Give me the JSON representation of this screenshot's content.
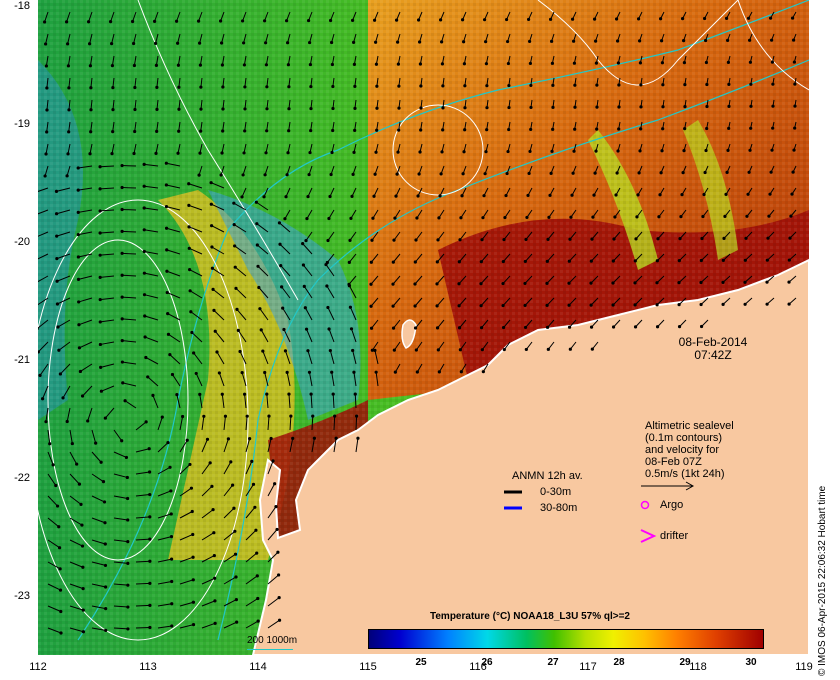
{
  "axes": {
    "lat_ticks": [
      "-18",
      "-19",
      "-20",
      "-21",
      "-22",
      "-23"
    ],
    "lon_ticks": [
      "112",
      "113",
      "114",
      "115",
      "116",
      "117",
      "118",
      "119"
    ],
    "lat_range": [
      -23.5,
      -18
    ],
    "lon_range": [
      112,
      119
    ]
  },
  "timestamp": {
    "date": "08-Feb-2014",
    "time": "07:42Z"
  },
  "altimetry_note": {
    "line1": "Altimetric sealevel",
    "line2": "(0.1m contours)",
    "line3": "and velocity for",
    "line4": "08-Feb 07Z",
    "line5": "0.5m/s (1kt 24h)"
  },
  "anmn": {
    "title": "ANMN 12h av.",
    "shallow": "0-30m",
    "deep": "30-80m",
    "shallow_color": "#000000",
    "deep_color": "#0000ff"
  },
  "markers": {
    "argo": "Argo",
    "drifter": "drifter",
    "marker_color": "#ff00ff"
  },
  "bathymetry_legend": "200  1000m",
  "colorbar": {
    "title": "Temperature (°C) NOAA18_L3U 57% ql>=2",
    "ticks": [
      "25",
      "26",
      "27",
      "28",
      "29",
      "30"
    ],
    "range": [
      24.5,
      30.5
    ]
  },
  "credit": "© IMOS 06-Apr-2015 22:06:32 Hobart time",
  "colors": {
    "land": "#f8c8a0",
    "coastline": "#ffffff",
    "contour": "#ffffff",
    "isobath": "#22c8c8",
    "arrow": "#000000"
  }
}
